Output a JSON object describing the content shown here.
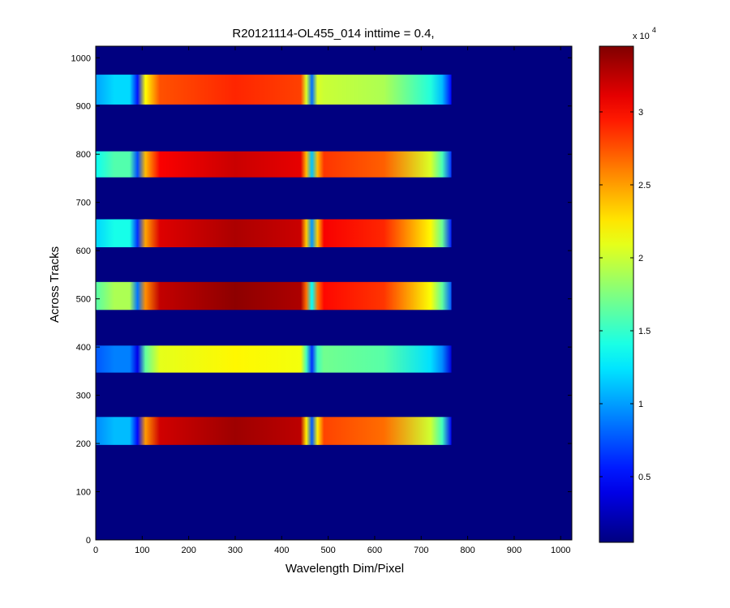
{
  "chart_data": {
    "type": "heatmap",
    "title": "R20121114-OL455_014 inttime = 0.4,",
    "xlabel": "Wavelength Dim/Pixel",
    "ylabel": "Across Tracks",
    "xlim": [
      0,
      1024
    ],
    "ylim": [
      0,
      1024
    ],
    "x_ticks": [
      0,
      100,
      200,
      300,
      400,
      500,
      600,
      700,
      800,
      900,
      1000
    ],
    "y_ticks": [
      0,
      100,
      200,
      300,
      400,
      500,
      600,
      700,
      800,
      900,
      1000
    ],
    "colorbar": {
      "colormap": "jet",
      "range": [
        500,
        34500
      ],
      "ticks": [
        5000,
        10000,
        15000,
        20000,
        25000,
        30000
      ],
      "tick_labels": [
        "0.5",
        "1",
        "1.5",
        "2",
        "2.5",
        "3"
      ],
      "exponent_label": "x 10",
      "exponent_power": "4"
    },
    "background_value": 500,
    "band_x_range": [
      0,
      765
    ],
    "gaps": [
      {
        "center": 90,
        "width": 18
      },
      {
        "center": 465,
        "width": 24
      }
    ],
    "bands": [
      {
        "y_min": 197,
        "y_max": 255,
        "left_value": 11000,
        "mid_value": 33500,
        "right_value": 28000
      },
      {
        "y_min": 347,
        "y_max": 403,
        "left_value": 9000,
        "mid_value": 22000,
        "right_value": 17000
      },
      {
        "y_min": 477,
        "y_max": 535,
        "left_value": 19000,
        "mid_value": 34000,
        "right_value": 30000
      },
      {
        "y_min": 607,
        "y_max": 665,
        "left_value": 14000,
        "mid_value": 33000,
        "right_value": 30500
      },
      {
        "y_min": 752,
        "y_max": 806,
        "left_value": 16000,
        "mid_value": 32000,
        "right_value": 28500
      },
      {
        "y_min": 903,
        "y_max": 965,
        "left_value": 12000,
        "mid_value": 29000,
        "right_value": 20000
      }
    ]
  }
}
